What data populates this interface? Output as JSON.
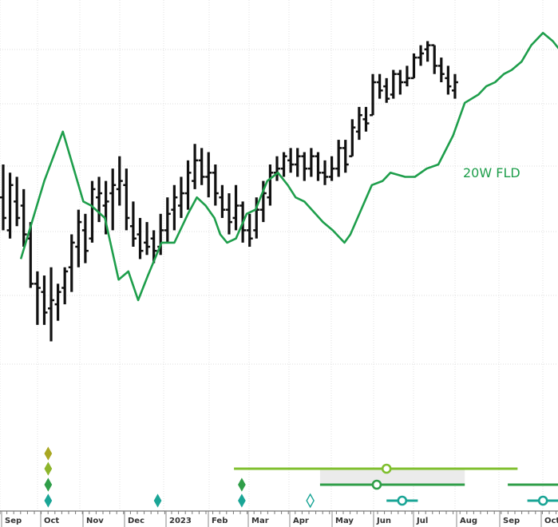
{
  "chart_data": {
    "type": "bar",
    "subtype": "ohlc-weekly",
    "title": "",
    "xlabel": "",
    "ylabel": "",
    "grid": true,
    "grid_style": "dotted",
    "x_ticks": [
      "Sep",
      "Oct",
      "Nov",
      "Dec",
      "2023",
      "Feb",
      "Mar",
      "Apr",
      "May",
      "Jun",
      "Jul",
      "Aug",
      "Sep",
      "Oct"
    ],
    "ylim": [
      0,
      100
    ],
    "price_bars": [
      {
        "x": 0.0,
        "h": 60,
        "l": 44,
        "o": 52,
        "c": 47
      },
      {
        "x": 0.35,
        "h": 58,
        "l": 42,
        "o": 44,
        "c": 55
      },
      {
        "x": 0.7,
        "h": 57,
        "l": 45,
        "o": 51,
        "c": 47
      },
      {
        "x": 1.05,
        "h": 54,
        "l": 40,
        "o": 50,
        "c": 43
      },
      {
        "x": 1.4,
        "h": 46,
        "l": 30,
        "o": 42,
        "c": 31
      },
      {
        "x": 1.75,
        "h": 34,
        "l": 21,
        "o": 31,
        "c": 30
      },
      {
        "x": 2.1,
        "h": 33,
        "l": 21,
        "o": 29,
        "c": 24
      },
      {
        "x": 2.45,
        "h": 35,
        "l": 17,
        "o": 25,
        "c": 27
      },
      {
        "x": 2.8,
        "h": 31,
        "l": 22,
        "o": 26,
        "c": 29
      },
      {
        "x": 3.15,
        "h": 35,
        "l": 26,
        "o": 30,
        "c": 34
      },
      {
        "x": 3.5,
        "h": 43,
        "l": 29,
        "o": 35,
        "c": 41
      },
      {
        "x": 3.85,
        "h": 49,
        "l": 35,
        "o": 40,
        "c": 46
      },
      {
        "x": 4.2,
        "h": 48,
        "l": 36,
        "o": 44,
        "c": 39
      },
      {
        "x": 4.55,
        "h": 56,
        "l": 41,
        "o": 42,
        "c": 54
      },
      {
        "x": 4.9,
        "h": 57,
        "l": 46,
        "o": 52,
        "c": 53
      },
      {
        "x": 5.25,
        "h": 56,
        "l": 43,
        "o": 50,
        "c": 51
      },
      {
        "x": 5.6,
        "h": 59,
        "l": 44,
        "o": 53,
        "c": 55
      },
      {
        "x": 5.95,
        "h": 62,
        "l": 50,
        "o": 54,
        "c": 56
      },
      {
        "x": 6.3,
        "h": 59,
        "l": 44,
        "o": 55,
        "c": 47
      },
      {
        "x": 6.65,
        "h": 51,
        "l": 40,
        "o": 45,
        "c": 42
      },
      {
        "x": 7.0,
        "h": 47,
        "l": 37,
        "o": 43,
        "c": 39
      },
      {
        "x": 7.35,
        "h": 46,
        "l": 38,
        "o": 41,
        "c": 40
      },
      {
        "x": 7.7,
        "h": 44,
        "l": 36,
        "o": 42,
        "c": 39
      },
      {
        "x": 8.05,
        "h": 48,
        "l": 38,
        "o": 40,
        "c": 44
      },
      {
        "x": 8.4,
        "h": 52,
        "l": 41,
        "o": 44,
        "c": 48
      },
      {
        "x": 8.75,
        "h": 55,
        "l": 44,
        "o": 49,
        "c": 52
      },
      {
        "x": 9.1,
        "h": 57,
        "l": 47,
        "o": 50,
        "c": 53
      },
      {
        "x": 9.45,
        "h": 61,
        "l": 49,
        "o": 53,
        "c": 58
      },
      {
        "x": 9.8,
        "h": 65,
        "l": 54,
        "o": 56,
        "c": 61
      },
      {
        "x": 10.15,
        "h": 64,
        "l": 55,
        "o": 61,
        "c": 57
      },
      {
        "x": 10.5,
        "h": 63,
        "l": 52,
        "o": 57,
        "c": 58
      },
      {
        "x": 10.85,
        "h": 60,
        "l": 50,
        "o": 58,
        "c": 53
      },
      {
        "x": 11.2,
        "h": 55,
        "l": 47,
        "o": 52,
        "c": 49
      },
      {
        "x": 11.55,
        "h": 53,
        "l": 43,
        "o": 49,
        "c": 46
      },
      {
        "x": 11.9,
        "h": 55,
        "l": 44,
        "o": 47,
        "c": 50
      },
      {
        "x": 12.25,
        "h": 51,
        "l": 41,
        "o": 50,
        "c": 44
      },
      {
        "x": 12.6,
        "h": 48,
        "l": 40,
        "o": 44,
        "c": 42
      },
      {
        "x": 12.95,
        "h": 52,
        "l": 42,
        "o": 44,
        "c": 49
      },
      {
        "x": 13.3,
        "h": 56,
        "l": 46,
        "o": 49,
        "c": 53
      },
      {
        "x": 13.65,
        "h": 60,
        "l": 50,
        "o": 52,
        "c": 58
      },
      {
        "x": 14.0,
        "h": 62,
        "l": 56,
        "o": 58,
        "c": 59
      },
      {
        "x": 14.35,
        "h": 63,
        "l": 57,
        "o": 59,
        "c": 62
      },
      {
        "x": 14.7,
        "h": 64,
        "l": 58,
        "o": 61,
        "c": 60
      },
      {
        "x": 15.05,
        "h": 64,
        "l": 57,
        "o": 60,
        "c": 62
      },
      {
        "x": 15.4,
        "h": 63,
        "l": 56,
        "o": 62,
        "c": 59
      },
      {
        "x": 15.75,
        "h": 64,
        "l": 57,
        "o": 59,
        "c": 62
      },
      {
        "x": 16.1,
        "h": 63,
        "l": 56,
        "o": 62,
        "c": 58
      },
      {
        "x": 16.45,
        "h": 61,
        "l": 55,
        "o": 58,
        "c": 57
      },
      {
        "x": 16.8,
        "h": 62,
        "l": 56,
        "o": 57,
        "c": 59
      },
      {
        "x": 17.15,
        "h": 66,
        "l": 57,
        "o": 59,
        "c": 64
      },
      {
        "x": 17.5,
        "h": 66,
        "l": 58,
        "o": 64,
        "c": 60
      },
      {
        "x": 17.85,
        "h": 71,
        "l": 62,
        "o": 62,
        "c": 69
      },
      {
        "x": 18.2,
        "h": 74,
        "l": 66,
        "o": 68,
        "c": 72
      },
      {
        "x": 18.55,
        "h": 74,
        "l": 68,
        "o": 71,
        "c": 70
      },
      {
        "x": 18.9,
        "h": 82,
        "l": 72,
        "o": 72,
        "c": 80
      },
      {
        "x": 19.25,
        "h": 82,
        "l": 76,
        "o": 80,
        "c": 78
      },
      {
        "x": 19.6,
        "h": 81,
        "l": 75,
        "o": 79,
        "c": 76
      },
      {
        "x": 19.95,
        "h": 83,
        "l": 76,
        "o": 77,
        "c": 82
      },
      {
        "x": 20.3,
        "h": 83,
        "l": 77,
        "o": 82,
        "c": 80
      },
      {
        "x": 20.65,
        "h": 84,
        "l": 79,
        "o": 80,
        "c": 81
      },
      {
        "x": 21.0,
        "h": 87,
        "l": 81,
        "o": 81,
        "c": 86
      },
      {
        "x": 21.35,
        "h": 89,
        "l": 84,
        "o": 86,
        "c": 87
      },
      {
        "x": 21.7,
        "h": 90,
        "l": 85,
        "o": 88,
        "c": 89
      },
      {
        "x": 22.05,
        "h": 89,
        "l": 82,
        "o": 89,
        "c": 84
      },
      {
        "x": 22.4,
        "h": 86,
        "l": 80,
        "o": 84,
        "c": 82
      },
      {
        "x": 22.75,
        "h": 84,
        "l": 77,
        "o": 81,
        "c": 79
      },
      {
        "x": 23.1,
        "h": 82,
        "l": 76,
        "o": 78,
        "c": 80
      }
    ],
    "series": [
      {
        "name": "20W FLD",
        "color": "#1e9e4b",
        "points": [
          [
            0.9,
            37
          ],
          [
            2.1,
            56
          ],
          [
            3.05,
            68
          ],
          [
            4.1,
            51
          ],
          [
            4.5,
            50
          ],
          [
            5.2,
            47
          ],
          [
            5.9,
            32
          ],
          [
            6.4,
            34
          ],
          [
            6.9,
            27
          ],
          [
            7.4,
            33
          ],
          [
            8.1,
            41
          ],
          [
            8.75,
            41
          ],
          [
            9.45,
            48
          ],
          [
            9.9,
            52
          ],
          [
            10.35,
            50
          ],
          [
            10.8,
            47
          ],
          [
            11.1,
            43
          ],
          [
            11.45,
            41
          ],
          [
            11.9,
            42
          ],
          [
            12.45,
            48
          ],
          [
            12.9,
            49
          ],
          [
            13.5,
            56
          ],
          [
            14.05,
            58
          ],
          [
            14.55,
            55
          ],
          [
            14.95,
            52
          ],
          [
            15.4,
            51
          ],
          [
            16.35,
            46
          ],
          [
            16.85,
            44
          ],
          [
            17.45,
            41
          ],
          [
            17.75,
            43
          ],
          [
            18.3,
            49
          ],
          [
            18.85,
            55
          ],
          [
            19.4,
            56
          ],
          [
            19.8,
            58
          ],
          [
            20.55,
            57
          ],
          [
            21.05,
            57
          ],
          [
            21.65,
            59
          ],
          [
            22.25,
            60
          ],
          [
            23.0,
            67
          ],
          [
            23.6,
            75
          ],
          [
            24.3,
            77
          ],
          [
            24.7,
            79
          ],
          [
            25.15,
            80
          ],
          [
            25.6,
            82
          ],
          [
            26.0,
            83
          ],
          [
            26.5,
            85
          ],
          [
            27.0,
            89
          ],
          [
            27.6,
            92
          ],
          [
            28.1,
            90
          ],
          [
            28.6,
            87
          ]
        ]
      }
    ],
    "annotations": [
      "20W FLD"
    ],
    "cycle_markers": {
      "diamond_columns": [
        {
          "x": 2.3,
          "count": 4,
          "colors": [
            "#a9a722",
            "#8db52b",
            "#2f9e48",
            "#1aa596"
          ]
        },
        {
          "x": 7.9,
          "count": 1,
          "colors": [
            "#1aa596"
          ]
        },
        {
          "x": 12.2,
          "count": 2,
          "colors": [
            "#2f9e48",
            "#1aa596"
          ]
        },
        {
          "x": 15.7,
          "count": 1,
          "colors": [
            "#1aa596"
          ],
          "hollow": true
        }
      ],
      "range_lines": [
        {
          "x_start": 11.8,
          "x_end": 26.3,
          "center": 19.6,
          "color": "#7fbf2e",
          "row": 0
        },
        {
          "x_start": 16.2,
          "x_end": 23.6,
          "center": 19.1,
          "color": "#2f9e48",
          "row": 1
        },
        {
          "x_start": 25.8,
          "x_end": 28.6,
          "center": null,
          "color": "#2f9e48",
          "row": 1
        },
        {
          "x_start": 19.6,
          "x_end": 21.2,
          "center": 20.4,
          "color": "#1aa596",
          "row": 2
        },
        {
          "x_start": 26.8,
          "x_end": 28.6,
          "center": 27.6,
          "color": "#1aa596",
          "row": 2
        }
      ],
      "shaded_band": {
        "x_start": 16.2,
        "x_end": 23.6,
        "color": "#ebebeb"
      }
    }
  }
}
